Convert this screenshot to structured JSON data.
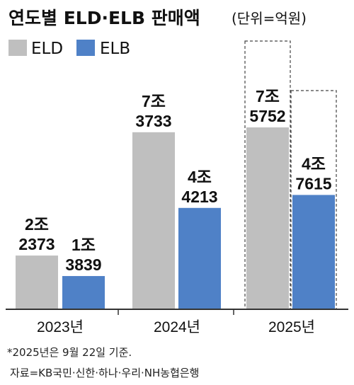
{
  "title": "연도별 ELD·ELB 판매액",
  "unit": "(단위=억원)",
  "note_lines": [
    "*2025년은 9월 22일 기준.",
    "자료=KB국민·신한·하나·우리·NH농협은행"
  ],
  "colors": {
    "ELD": "#bfbfbf",
    "ELB": "#4f81c7",
    "axis": "#333333",
    "dash": "#444444"
  },
  "chart_data": {
    "type": "bar",
    "title": "연도별 ELD·ELB 판매액",
    "unit": "억원",
    "categories": [
      "2023년",
      "2024년",
      "2025년"
    ],
    "series": [
      {
        "name": "ELD",
        "values": [
          22373,
          73733,
          75752
        ],
        "labels": [
          [
            "2조",
            "2373"
          ],
          [
            "7조",
            "3733"
          ],
          [
            "7조",
            "5752"
          ]
        ]
      },
      {
        "name": "ELB",
        "values": [
          13839,
          42213,
          47615
        ],
        "labels": [
          [
            "1조",
            "3839"
          ],
          [
            "4조",
            "4213"
          ],
          [
            "4조",
            "7615"
          ]
        ]
      }
    ],
    "ylim": [
      0,
      100000
    ],
    "grid": false,
    "legend": "top-left",
    "annotations": [
      "2025 bars outlined with dashed boxes (partial-year figure)"
    ]
  }
}
